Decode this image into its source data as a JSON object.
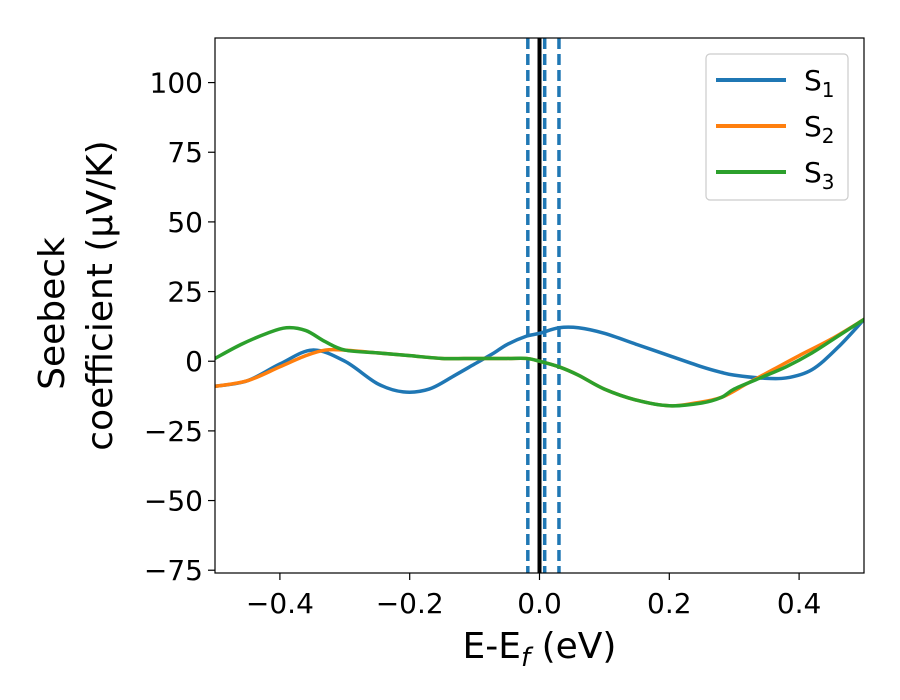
{
  "chart_data": {
    "type": "line",
    "title": "",
    "xlabel": {
      "main": "E-E",
      "sub": "f",
      "suffix": " (eV)"
    },
    "ylabel": {
      "line1": "Seebeck",
      "line2": "coefficient  (μV/K)"
    },
    "xlim": [
      -0.5,
      0.5
    ],
    "ylim": [
      -76,
      116
    ],
    "xticks": [
      -0.4,
      -0.2,
      0.0,
      0.2,
      0.4
    ],
    "xtick_labels": [
      "−0.4",
      "−0.2",
      "0.0",
      "0.2",
      "0.4"
    ],
    "yticks": [
      -75,
      -50,
      -25,
      0,
      25,
      50,
      75,
      100
    ],
    "ytick_labels": [
      "−75",
      "−50",
      "−25",
      "0",
      "25",
      "50",
      "75",
      "100"
    ],
    "grid": false,
    "legend_position": "top-right",
    "vlines": [
      {
        "x": 0.0,
        "style": "solid",
        "color": "#000000"
      },
      {
        "x": -0.018,
        "style": "dashed",
        "color": "#1f77b4"
      },
      {
        "x": 0.008,
        "style": "dashed",
        "color": "#1f77b4"
      },
      {
        "x": 0.03,
        "style": "dashed",
        "color": "#1f77b4"
      }
    ],
    "series": [
      {
        "name": "S",
        "sub": "1",
        "color": "#1f77b4",
        "x": [
          -0.5,
          -0.45,
          -0.4,
          -0.35,
          -0.3,
          -0.25,
          -0.21,
          -0.17,
          -0.13,
          -0.1,
          -0.07,
          -0.05,
          -0.02,
          0.0,
          0.03,
          0.06,
          0.1,
          0.15,
          0.2,
          0.25,
          0.28,
          0.3,
          0.34,
          0.38,
          0.42,
          0.46,
          0.5
        ],
        "y": [
          -9,
          -7,
          -1,
          4,
          0,
          -8,
          -11,
          -10,
          -5,
          -1,
          3,
          6,
          9,
          10,
          12,
          12,
          10,
          6,
          2,
          -2,
          -4,
          -5,
          -6,
          -6,
          -3,
          5,
          15
        ]
      },
      {
        "name": "S",
        "sub": "2",
        "color": "#ff7f0e",
        "x": [
          -0.5,
          -0.45,
          -0.4,
          -0.36,
          -0.33,
          -0.3,
          -0.25,
          -0.2,
          -0.15,
          -0.1,
          -0.05,
          -0.02,
          0.0,
          0.03,
          0.06,
          0.1,
          0.15,
          0.2,
          0.24,
          0.28,
          0.32,
          0.36,
          0.4,
          0.45,
          0.5
        ],
        "y": [
          -9,
          -7,
          -2,
          2,
          4,
          4,
          3,
          2,
          1,
          1,
          1,
          1,
          0,
          -2,
          -5,
          -10,
          -14,
          -16,
          -15,
          -13,
          -8,
          -3,
          2,
          8,
          15
        ]
      },
      {
        "name": "S",
        "sub": "3",
        "color": "#2ca02c",
        "x": [
          -0.5,
          -0.46,
          -0.42,
          -0.39,
          -0.36,
          -0.33,
          -0.3,
          -0.25,
          -0.2,
          -0.15,
          -0.1,
          -0.05,
          -0.02,
          0.0,
          0.03,
          0.06,
          0.1,
          0.15,
          0.2,
          0.25,
          0.28,
          0.3,
          0.34,
          0.38,
          0.42,
          0.46,
          0.5
        ],
        "y": [
          1,
          6,
          10,
          12,
          11,
          7,
          4,
          3,
          2,
          1,
          1,
          1,
          1,
          0,
          -2,
          -5,
          -10,
          -14,
          -16,
          -15,
          -13,
          -10,
          -6,
          -2,
          3,
          9,
          15
        ]
      }
    ]
  }
}
